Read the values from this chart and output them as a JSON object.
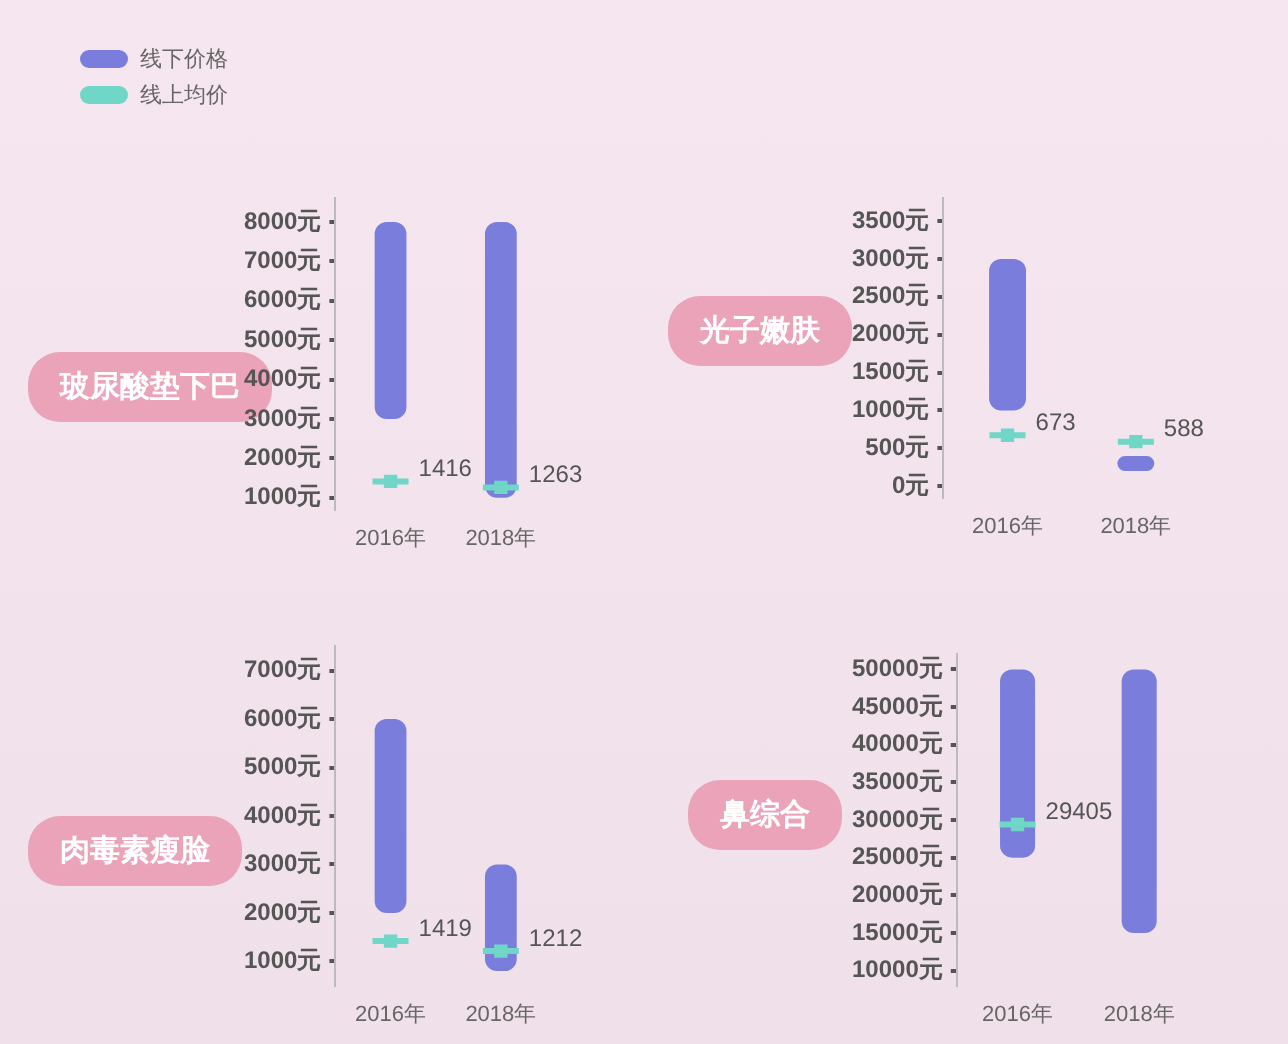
{
  "chart_data": [
    {
      "type": "bar",
      "title": "玻尿酸垫下巴",
      "categories": [
        "2016年",
        "2018年"
      ],
      "legend": "top left",
      "grid": false,
      "ylim": [
        700,
        8600
      ],
      "yticks": [
        {
          "value": 1000,
          "label": "1000元"
        },
        {
          "value": 2000,
          "label": "2000元"
        },
        {
          "value": 3000,
          "label": "3000元"
        },
        {
          "value": 4000,
          "label": "4000元"
        },
        {
          "value": 5000,
          "label": "5000元"
        },
        {
          "value": 6000,
          "label": "6000元"
        },
        {
          "value": 7000,
          "label": "7000元"
        },
        {
          "value": 8000,
          "label": "8000元"
        }
      ],
      "series": [
        {
          "name": "线下价格",
          "color": "#7b7ddc",
          "base": [
            3000,
            1000
          ],
          "values": [
            5000,
            7000
          ]
        },
        {
          "name": "线上均价",
          "type": "scatter",
          "marker": "square",
          "color": "#6fd6c8",
          "values": [
            1416,
            1263
          ],
          "value_labels": [
            "1416",
            "1263"
          ]
        }
      ]
    },
    {
      "type": "bar",
      "title": "光子嫩肤",
      "categories": [
        "2016年",
        "2018年"
      ],
      "grid": false,
      "ylim": [
        -150,
        3800
      ],
      "yticks": [
        {
          "value": 0,
          "label": "0元"
        },
        {
          "value": 500,
          "label": "500元"
        },
        {
          "value": 1000,
          "label": "1000元"
        },
        {
          "value": 1500,
          "label": "1500元"
        },
        {
          "value": 2000,
          "label": "2000元"
        },
        {
          "value": 2500,
          "label": "2500元"
        },
        {
          "value": 3000,
          "label": "3000元"
        },
        {
          "value": 3500,
          "label": "3500元"
        }
      ],
      "series": [
        {
          "color": "#7b7ddc",
          "base": [
            1000,
            200
          ],
          "values": [
            2000,
            200
          ]
        },
        {
          "type": "scatter",
          "marker": "square",
          "color": "#6fd6c8",
          "values": [
            673,
            588
          ],
          "value_labels": [
            "673",
            "588"
          ]
        }
      ]
    },
    {
      "type": "bar",
      "title": "肉毒素瘦脸",
      "categories": [
        "2016年",
        "2018年"
      ],
      "grid": false,
      "ylim": [
        500,
        7500
      ],
      "yticks": [
        {
          "value": 1000,
          "label": "1000元"
        },
        {
          "value": 2000,
          "label": "2000元"
        },
        {
          "value": 3000,
          "label": "3000元"
        },
        {
          "value": 4000,
          "label": "4000元"
        },
        {
          "value": 5000,
          "label": "5000元"
        },
        {
          "value": 6000,
          "label": "6000元"
        },
        {
          "value": 7000,
          "label": "7000元"
        }
      ],
      "series": [
        {
          "color": "#7b7ddc",
          "base": [
            2000,
            800
          ],
          "values": [
            4000,
            2200
          ]
        },
        {
          "type": "scatter",
          "marker": "square",
          "color": "#6fd6c8",
          "values": [
            1419,
            1212
          ],
          "value_labels": [
            "1419",
            "1212"
          ]
        }
      ]
    },
    {
      "type": "bar",
      "title": "鼻综合",
      "categories": [
        "2016年",
        "2018年"
      ],
      "grid": false,
      "ylim": [
        8000,
        52000
      ],
      "yticks": [
        {
          "value": 10000,
          "label": "10000元"
        },
        {
          "value": 15000,
          "label": "15000元"
        },
        {
          "value": 20000,
          "label": "20000元"
        },
        {
          "value": 25000,
          "label": "25000元"
        },
        {
          "value": 30000,
          "label": "30000元"
        },
        {
          "value": 35000,
          "label": "35000元"
        },
        {
          "value": 40000,
          "label": "40000元"
        },
        {
          "value": 45000,
          "label": "45000元"
        },
        {
          "value": 50000,
          "label": "50000元"
        }
      ],
      "series": [
        {
          "color": "#7b7ddc",
          "base": [
            25000,
            15000
          ],
          "values": [
            25000,
            35000
          ]
        },
        {
          "type": "scatter",
          "marker": "square",
          "color": "#6fd6c8",
          "values": [
            29405,
            null
          ],
          "value_labels": [
            "29405",
            null
          ]
        }
      ]
    }
  ]
}
